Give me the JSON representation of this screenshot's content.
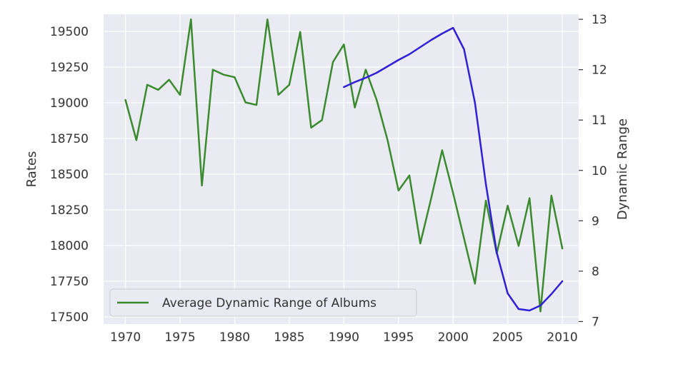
{
  "chart_data": {
    "type": "line",
    "grid": true,
    "legend_placement": "lower-left",
    "xlim": [
      1968,
      2011.5
    ],
    "x_ticks": [
      1970,
      1975,
      1980,
      1985,
      1990,
      1995,
      2000,
      2005,
      2010
    ],
    "left_axis": {
      "label": "Rates",
      "ylim": [
        17450,
        19620
      ],
      "ticks": [
        17500,
        17750,
        18000,
        18250,
        18500,
        18750,
        19000,
        19250,
        19500
      ]
    },
    "right_axis": {
      "label": "Dynamic Range",
      "ylim": [
        6.95,
        13.1
      ],
      "ticks": [
        7,
        8,
        9,
        10,
        11,
        12,
        13
      ]
    },
    "series": [
      {
        "name": "Average Dynamic Range of Albums",
        "axis": "right",
        "color": "#3a8a2e",
        "in_legend": true,
        "x": [
          1970,
          1971,
          1972,
          1973,
          1974,
          1975,
          1976,
          1977,
          1978,
          1979,
          1980,
          1981,
          1982,
          1983,
          1984,
          1985,
          1986,
          1987,
          1988,
          1989,
          1990,
          1991,
          1992,
          1993,
          1994,
          1995,
          1996,
          1997,
          1998,
          1999,
          2000,
          2001,
          2002,
          2003,
          2004,
          2005,
          2006,
          2007,
          2008,
          2009,
          2010
        ],
        "y": [
          11.4,
          10.6,
          11.7,
          11.6,
          11.8,
          11.5,
          13.0,
          9.7,
          12.0,
          11.9,
          11.85,
          11.35,
          11.3,
          13.0,
          11.5,
          11.7,
          12.75,
          10.85,
          11.0,
          12.15,
          12.5,
          11.25,
          12.0,
          11.4,
          10.6,
          9.6,
          9.9,
          8.55,
          9.45,
          10.4,
          9.55,
          8.65,
          7.75,
          9.4,
          8.35,
          9.3,
          8.5,
          9.45,
          7.2,
          9.5,
          8.45
        ]
      },
      {
        "name": "",
        "axis": "left",
        "color": "#2f1fd8",
        "in_legend": false,
        "x": [
          1990,
          1991,
          1992,
          1993,
          1994,
          1995,
          1996,
          1997,
          1998,
          1999,
          2000,
          2001,
          2002,
          2003,
          2004,
          2005,
          2006,
          2007,
          2008,
          2009,
          2010
        ],
        "y": [
          19110,
          19145,
          19175,
          19210,
          19255,
          19300,
          19340,
          19390,
          19440,
          19485,
          19525,
          19375,
          19000,
          18430,
          17950,
          17665,
          17555,
          17545,
          17580,
          17660,
          17750
        ]
      }
    ]
  }
}
